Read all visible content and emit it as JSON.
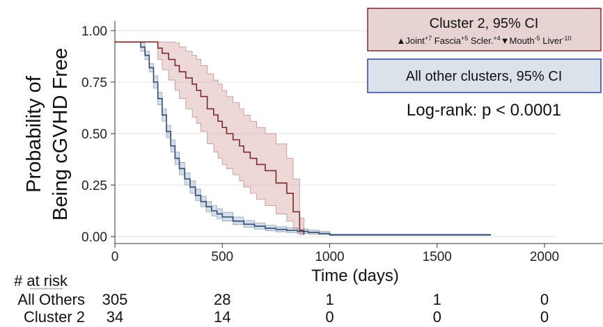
{
  "chart_data": {
    "type": "line",
    "title": "",
    "xlabel": "Time (days)",
    "ylabel": [
      "Probability of",
      "Being cGVHD Free"
    ],
    "xlim": [
      0,
      2200
    ],
    "ylim": [
      0,
      1.0
    ],
    "x_ticks": [
      0,
      500,
      1000,
      1500,
      2000
    ],
    "x_tick_labels": [
      "0",
      "500",
      "1000",
      "1500",
      "2000"
    ],
    "y_ticks": [
      0,
      0.25,
      0.5,
      0.75,
      1.0
    ],
    "y_tick_labels": [
      "0.00",
      "0.25",
      "0.50",
      "0.75",
      "1.00"
    ],
    "grid": "horizontal",
    "series": [
      {
        "name": "All other clusters, 95% CI",
        "color": "#2f4a6d",
        "band_color": "#9fb3cf",
        "x": [
          0,
          100,
          120,
          140,
          160,
          180,
          200,
          220,
          240,
          260,
          280,
          300,
          325,
          350,
          375,
          400,
          425,
          450,
          475,
          500,
          550,
          600,
          650,
          700,
          750,
          800,
          850,
          900,
          950,
          1000,
          1200,
          1500,
          1750
        ],
        "y": [
          0.945,
          0.945,
          0.92,
          0.88,
          0.82,
          0.75,
          0.67,
          0.59,
          0.51,
          0.44,
          0.38,
          0.33,
          0.28,
          0.24,
          0.2,
          0.17,
          0.145,
          0.125,
          0.11,
          0.095,
          0.075,
          0.06,
          0.05,
          0.04,
          0.035,
          0.03,
          0.025,
          0.02,
          0.015,
          0.008,
          0.008,
          0.008,
          0.008
        ],
        "lower": [
          0.945,
          0.945,
          0.9,
          0.86,
          0.8,
          0.72,
          0.64,
          0.56,
          0.48,
          0.41,
          0.35,
          0.3,
          0.25,
          0.21,
          0.175,
          0.145,
          0.12,
          0.1,
          0.087,
          0.075,
          0.058,
          0.045,
          0.036,
          0.028,
          0.023,
          0.019,
          0.015,
          0.012,
          0.009,
          0.005,
          0.005,
          0.005,
          0.005
        ],
        "upper": [
          0.945,
          0.945,
          0.94,
          0.9,
          0.84,
          0.78,
          0.7,
          0.62,
          0.54,
          0.47,
          0.41,
          0.36,
          0.31,
          0.27,
          0.23,
          0.195,
          0.17,
          0.15,
          0.135,
          0.118,
          0.095,
          0.078,
          0.066,
          0.055,
          0.048,
          0.042,
          0.037,
          0.031,
          0.025,
          0.012,
          0.012,
          0.012,
          0.012
        ]
      },
      {
        "name": "Cluster 2, 95% CI",
        "color": "#7a2a2a",
        "band_color": "#d9a6a6",
        "x": [
          0,
          180,
          200,
          220,
          250,
          280,
          300,
          330,
          360,
          380,
          400,
          430,
          460,
          480,
          500,
          520,
          550,
          580,
          600,
          630,
          660,
          700,
          750,
          800,
          830,
          860,
          880
        ],
        "y": [
          0.945,
          0.945,
          0.915,
          0.89,
          0.86,
          0.83,
          0.8,
          0.77,
          0.74,
          0.71,
          0.68,
          0.62,
          0.59,
          0.56,
          0.53,
          0.5,
          0.47,
          0.44,
          0.41,
          0.38,
          0.35,
          0.32,
          0.26,
          0.21,
          0.12,
          0.03,
          0.01
        ],
        "lower": [
          0.945,
          0.945,
          0.86,
          0.81,
          0.76,
          0.71,
          0.67,
          0.62,
          0.58,
          0.55,
          0.51,
          0.45,
          0.41,
          0.38,
          0.35,
          0.33,
          0.3,
          0.27,
          0.24,
          0.21,
          0.18,
          0.15,
          0.11,
          0.075,
          0.04,
          0.01,
          0.005
        ],
        "upper": [
          0.945,
          0.945,
          0.945,
          0.945,
          0.945,
          0.94,
          0.92,
          0.9,
          0.88,
          0.86,
          0.83,
          0.79,
          0.76,
          0.74,
          0.71,
          0.68,
          0.65,
          0.62,
          0.59,
          0.56,
          0.53,
          0.5,
          0.45,
          0.38,
          0.28,
          0.09,
          0.02
        ]
      }
    ],
    "legend": {
      "position": "top-right",
      "cluster2_title": "Cluster 2, 95% CI",
      "cluster2_bg": "#e8d3d3",
      "cluster2_border": "#7a2a2a",
      "cluster2_traits": [
        {
          "marker": "▲",
          "text": "Joint",
          "sup": "+7"
        },
        {
          "marker": "",
          "text": "Fascia",
          "sup": "+5"
        },
        {
          "marker": "",
          "text": "Scler.",
          "sup": "+4"
        },
        {
          "marker": "▼",
          "text": "Mouth",
          "sup": "-5"
        },
        {
          "marker": "",
          "text": "Liver",
          "sup": "-10"
        }
      ],
      "others_title": "All other clusters, 95% CI",
      "others_bg": "#dbe2ea",
      "others_border": "#2f3fa0"
    },
    "annotation": "Log-rank: p < 0.0001",
    "risk_table": {
      "header": "# at risk",
      "rows": [
        {
          "label": "All Others",
          "values": [
            "305",
            "28",
            "1",
            "1",
            "0"
          ]
        },
        {
          "label": "Cluster 2",
          "values": [
            "34",
            "14",
            "0",
            "0",
            "0"
          ]
        }
      ]
    }
  }
}
